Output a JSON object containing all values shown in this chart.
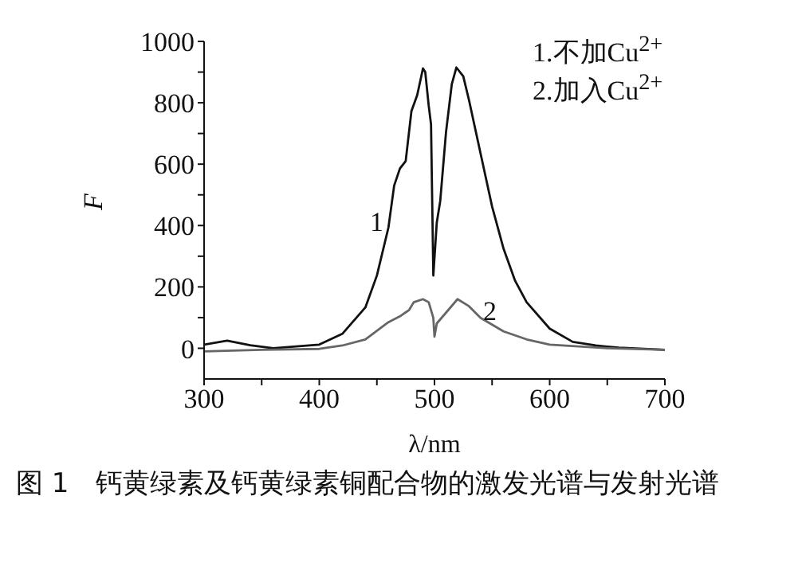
{
  "chart_data": {
    "type": "line",
    "xlabel": "λ/nm",
    "ylabel": "F",
    "xlim": [
      300,
      700
    ],
    "ylim": [
      -100,
      1000
    ],
    "xticks": [
      300,
      {
        "value": 350,
        "label": null
      },
      400,
      {
        "value": 450,
        "label": null
      },
      500,
      {
        "value": 550,
        "label": null
      },
      600,
      {
        "value": 650,
        "label": null
      },
      700
    ],
    "yticks": [
      0,
      {
        "value": 100,
        "label": null
      },
      200,
      {
        "value": 300,
        "label": null
      },
      400,
      {
        "value": 500,
        "label": null
      },
      600,
      {
        "value": 700,
        "label": null
      },
      800,
      {
        "value": 900,
        "label": null
      },
      1000
    ],
    "grid": false,
    "marker": "none",
    "line_style": "solid",
    "series": [
      {
        "name": "1",
        "color": "#111111",
        "x": [
          300,
          320,
          340,
          360,
          400,
          420,
          440,
          450,
          460,
          465,
          470,
          475,
          480,
          485,
          490,
          492,
          495,
          497,
          499,
          502,
          505,
          510,
          515,
          519,
          525,
          530,
          540,
          550,
          560,
          570,
          580,
          600,
          620,
          640,
          660,
          700
        ],
        "values": [
          12,
          25,
          10,
          0,
          12,
          47,
          133,
          237,
          393,
          530,
          586,
          610,
          773,
          825,
          912,
          900,
          790,
          730,
          237,
          410,
          480,
          704,
          860,
          915,
          886,
          808,
          635,
          462,
          324,
          220,
          150,
          64,
          21,
          9,
          2,
          -5
        ]
      },
      {
        "name": "2",
        "color": "#666666",
        "x": [
          300,
          350,
          400,
          420,
          440,
          460,
          470,
          478,
          482,
          490,
          495,
          499,
          500,
          502,
          510,
          520,
          530,
          540,
          560,
          580,
          600,
          650,
          700
        ],
        "values": [
          -10,
          -5,
          -2,
          9,
          29,
          85,
          104,
          125,
          150,
          160,
          150,
          99,
          38,
          81,
          116,
          160,
          137,
          99,
          55,
          29,
          12,
          0,
          -5
        ]
      }
    ],
    "annotations": [
      "1.不加Cu$^{2+}$",
      "2.加入Cu$^{2+}$",
      "图 1　钙黄绿素及钙黄绿素铜配合物的激发光谱与发射光谱"
    ]
  }
}
